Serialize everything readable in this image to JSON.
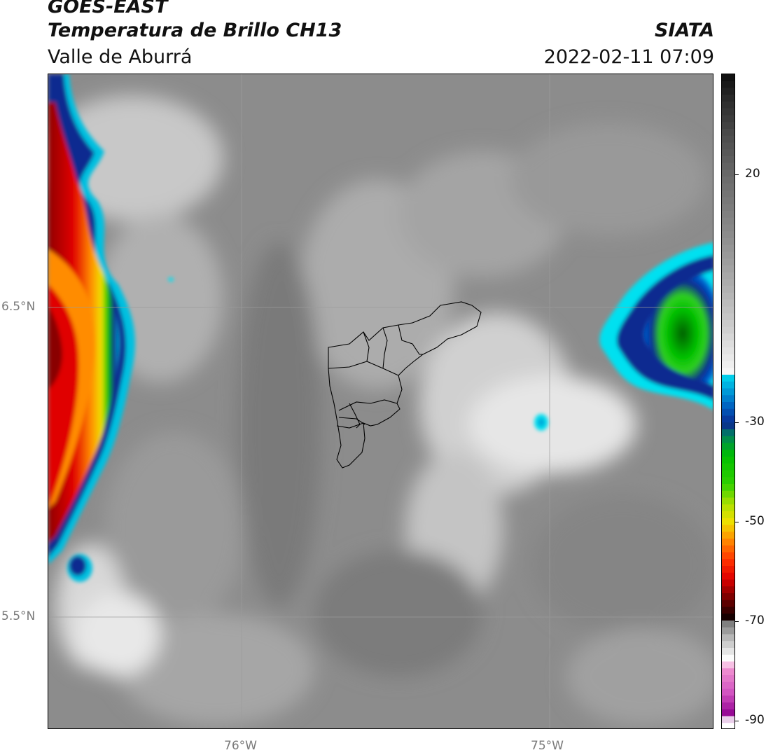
{
  "header": {
    "satellite": "GOES-EAST",
    "product": "Temperatura de Brillo CH13",
    "region": "Valle de Aburrá",
    "organization": "SIATA",
    "datetime": "2022-02-11 07:09"
  },
  "map": {
    "lat_labels": [
      "6.5°N",
      "5.5°N"
    ],
    "lon_labels": [
      "76°W",
      "75°W"
    ],
    "gridlines": true
  },
  "colorbar": {
    "tick_labels": [
      "20",
      "-30",
      "-50",
      "-70",
      "-90"
    ],
    "colors": {
      "warm": "#808080",
      "cold_gray": "#f2f2f2",
      "cyan": "#00e0f0",
      "blue": "#0a2a90",
      "green": "#00c000",
      "yellow": "#f0e000",
      "orange": "#ff8c00",
      "red": "#e00000",
      "dark": "#200000",
      "magenta": "#c040c0"
    }
  }
}
